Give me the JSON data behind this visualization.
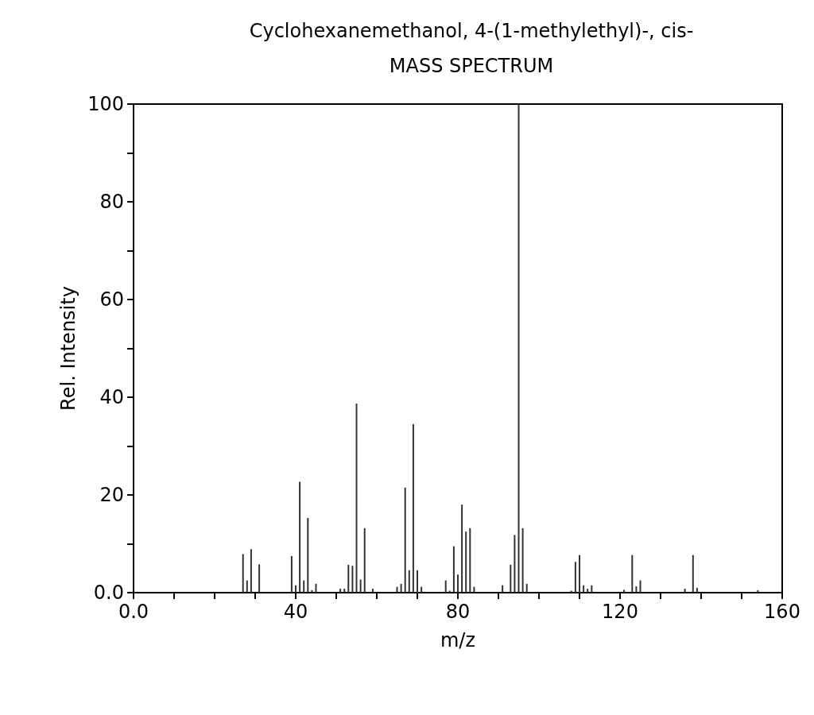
{
  "chart_data": {
    "type": "bar",
    "title": "Cyclohexanemethanol, 4-(1-methylethyl)-, cis-",
    "subtitle": "MASS SPECTRUM",
    "xlabel": "m/z",
    "ylabel": "Rel. Intensity",
    "x": [
      27,
      28,
      29,
      31,
      39,
      40,
      41,
      42,
      43,
      44,
      45,
      51,
      52,
      53,
      54,
      55,
      56,
      57,
      59,
      65,
      66,
      67,
      68,
      69,
      70,
      71,
      77,
      78,
      79,
      80,
      81,
      82,
      83,
      84,
      91,
      93,
      94,
      95,
      96,
      97,
      108,
      109,
      110,
      111,
      112,
      113,
      121,
      123,
      124,
      125,
      136,
      138,
      139,
      154
    ],
    "values": [
      7.9,
      2.5,
      8.9,
      5.8,
      7.5,
      1.5,
      22.7,
      2.5,
      15.3,
      0.5,
      1.8,
      0.8,
      0.8,
      5.7,
      5.5,
      38.7,
      2.7,
      13.2,
      0.8,
      1.2,
      1.8,
      21.5,
      4.6,
      34.5,
      4.6,
      1.2,
      2.5,
      0.4,
      9.5,
      3.7,
      18,
      12.5,
      13.2,
      1.2,
      1.5,
      5.7,
      11.8,
      100,
      13.2,
      1.8,
      0.4,
      6.3,
      7.7,
      1.5,
      0.8,
      1.5,
      0.6,
      7.7,
      1.3,
      2.5,
      0.8,
      7.7,
      1,
      0.5
    ],
    "color": "#333333",
    "xlim": [
      0,
      160
    ],
    "xticks": [
      {
        "value": 0,
        "label": "0.0"
      },
      {
        "value": 10,
        "label": null
      },
      {
        "value": 20,
        "label": null
      },
      {
        "value": 30,
        "label": null
      },
      40,
      {
        "value": 50,
        "label": null
      },
      {
        "value": 60,
        "label": null
      },
      {
        "value": 70,
        "label": null
      },
      80,
      {
        "value": 90,
        "label": null
      },
      {
        "value": 100,
        "label": null
      },
      {
        "value": 110,
        "label": null
      },
      120,
      {
        "value": 130,
        "label": null
      },
      {
        "value": 140,
        "label": null
      },
      {
        "value": 150,
        "label": null
      },
      160
    ],
    "ylim": [
      0,
      100
    ],
    "yticks": [
      {
        "value": 0,
        "label": "0.0"
      },
      {
        "value": 10,
        "label": null
      },
      20,
      {
        "value": 30,
        "label": null
      },
      40,
      {
        "value": 50,
        "label": null
      },
      60,
      {
        "value": 70,
        "label": null
      },
      80,
      {
        "value": 90,
        "label": null
      },
      100
    ],
    "grid": false
  }
}
